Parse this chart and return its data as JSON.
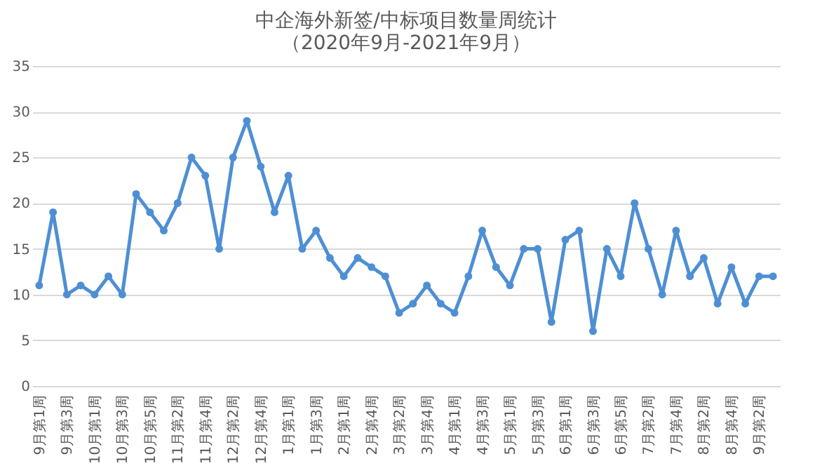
{
  "chart_data": {
    "type": "line",
    "title": [
      "中企海外新签/中标项目数量周统计",
      "（2020年9月-2021年9月）"
    ],
    "categories": [
      "9月第1周",
      null,
      "9月第3周",
      null,
      "10月第1周",
      null,
      "10月第3周",
      null,
      "10月第5周",
      null,
      "11月第2周",
      null,
      "11月第4周",
      null,
      "12月第2周",
      null,
      "12月第4周",
      null,
      "1月第1周",
      null,
      "1月第3周",
      null,
      "2月第1周",
      null,
      "2月第4周",
      null,
      "3月第2周",
      null,
      "3月第4周",
      null,
      "4月第1周",
      null,
      "4月第3周",
      null,
      "5月第1周",
      null,
      "5月第3周",
      null,
      "6月第1周",
      null,
      "6月第3周",
      null,
      "6月第5周",
      null,
      "7月第2周",
      null,
      "7月第4周",
      null,
      "8月第2周",
      null,
      "8月第4周",
      null,
      "9月第2周",
      null
    ],
    "series": [
      {
        "color": "#4e8fd4",
        "values": [
          11,
          19,
          10,
          11,
          10,
          12,
          10,
          21,
          19,
          17,
          20,
          25,
          23,
          15,
          25,
          29,
          24,
          19,
          23,
          15,
          17,
          14,
          12,
          14,
          13,
          12,
          8,
          9,
          11,
          9,
          8,
          12,
          17,
          13,
          11,
          15,
          15,
          7,
          16,
          17,
          6,
          15,
          12,
          20,
          15,
          10,
          17,
          12,
          14,
          9,
          13,
          9,
          12,
          12
        ]
      }
    ],
    "ylim": [
      0,
      35
    ],
    "yticks": [
      0,
      5,
      10,
      15,
      20,
      25,
      30,
      35
    ],
    "grid": "y",
    "marker": "circle",
    "line_style": "solid"
  }
}
